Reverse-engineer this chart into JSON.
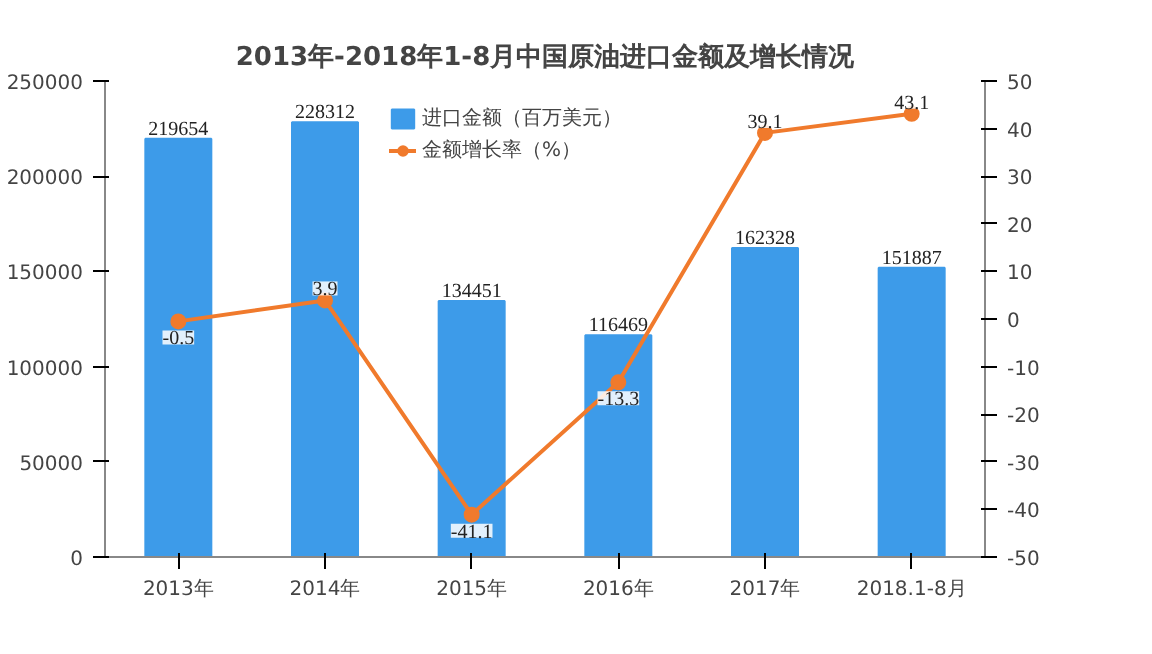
{
  "chart_data": {
    "type": "bar",
    "title": "2013年-2018年1-8月中国原油进口金额及增长情况",
    "categories": [
      "2013年",
      "2014年",
      "2015年",
      "2016年",
      "2017年",
      "2018.1-8月"
    ],
    "series": [
      {
        "name": "进口金额（百万美元）",
        "color": "#3d9be9",
        "values": [
          219654,
          228312,
          134451,
          116469,
          162328,
          151887
        ]
      },
      {
        "name": "金额增长率（%）",
        "type": "line",
        "axis": "y2",
        "color": "#f07a2c",
        "marker": "circle",
        "values": [
          -0.5,
          3.9,
          -41.1,
          -13.3,
          39.1,
          43.1
        ]
      }
    ],
    "ylim": [
      0,
      250000
    ],
    "yticks": [
      0,
      50000,
      100000,
      150000,
      200000,
      250000
    ],
    "y2lim": [
      -50,
      50
    ],
    "y2ticks": [
      -50,
      -40,
      -30,
      -20,
      -10,
      0,
      10,
      20,
      30,
      40,
      50
    ],
    "data_labels": true,
    "grid": false,
    "legend": "top"
  }
}
